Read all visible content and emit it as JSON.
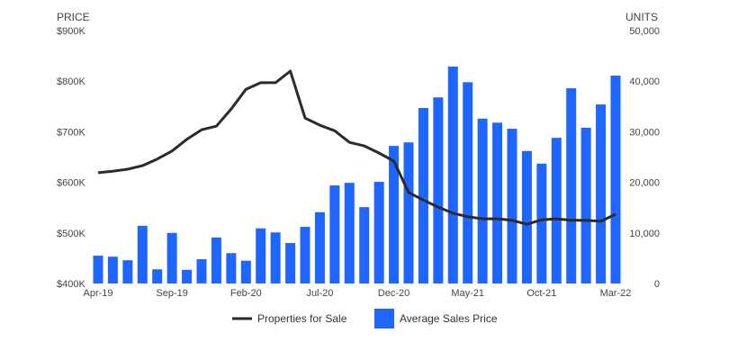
{
  "chart_data": {
    "type": "bar",
    "left_axis": {
      "title": "PRICE",
      "ticks": [
        "$400K",
        "$500K",
        "$600K",
        "$700K",
        "$800K",
        "$900K"
      ],
      "range": [
        400000,
        900000
      ]
    },
    "right_axis": {
      "title": "UNITS",
      "ticks": [
        "0",
        "10,000",
        "20,000",
        "30,000",
        "40,000",
        "50,000"
      ],
      "range": [
        0,
        50000
      ]
    },
    "x_tick_labels": [
      "Apr-19",
      "Sep-19",
      "Feb-20",
      "Jul-20",
      "Dec-20",
      "May-21",
      "Oct-21",
      "Mar-22"
    ],
    "months": 36,
    "grid": false,
    "legend_placement": "bottom-center",
    "series": [
      {
        "name": "Properties for Sale",
        "kind": "line",
        "axis": "right",
        "color": "#2b2b2b",
        "values": [
          21900,
          22200,
          22600,
          23300,
          24600,
          26200,
          28500,
          30400,
          31100,
          34500,
          38400,
          39700,
          39700,
          42000,
          32700,
          31300,
          30200,
          27900,
          27200,
          25800,
          24200,
          18000,
          16500,
          15100,
          13900,
          13200,
          12800,
          12800,
          12500,
          11700,
          12600,
          12800,
          12500,
          12500,
          12300,
          13700
        ]
      },
      {
        "name": "Average Sales Price",
        "kind": "bar",
        "axis": "left",
        "color": "#1f66ff",
        "values": [
          455000,
          453000,
          446000,
          514000,
          428000,
          500000,
          427000,
          448000,
          491000,
          460000,
          445000,
          509000,
          501000,
          480000,
          512000,
          541000,
          594000,
          599000,
          551000,
          601000,
          672000,
          679000,
          747000,
          768000,
          829000,
          798000,
          726000,
          718000,
          706000,
          662000,
          637000,
          688000,
          786000,
          708000,
          754000,
          811000
        ]
      }
    ]
  }
}
